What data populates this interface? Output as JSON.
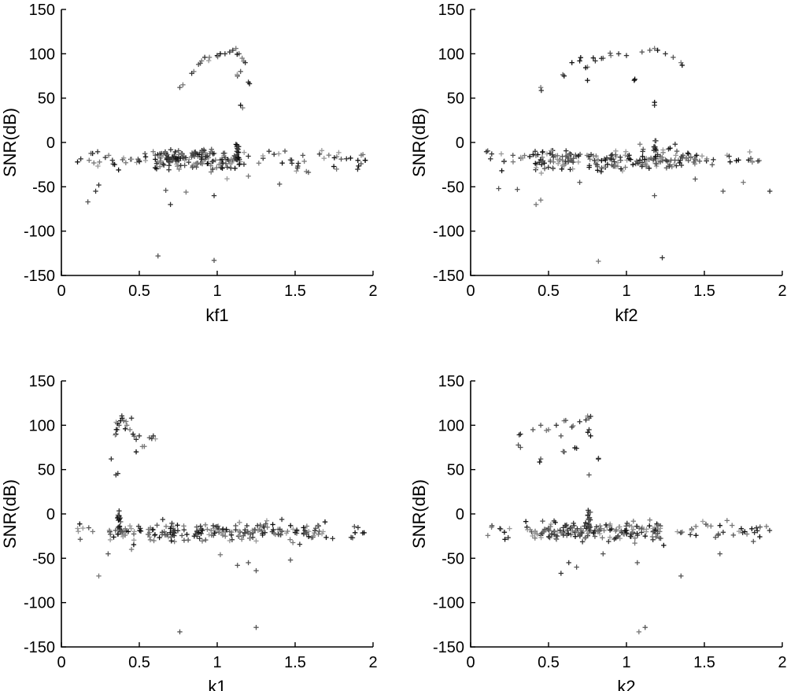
{
  "chart_data": [
    {
      "type": "scatter",
      "xlabel": "kf1",
      "ylabel": "SNR(dB)",
      "xlim": [
        0,
        2
      ],
      "ylim": [
        -150,
        150
      ],
      "xticks": [
        "0",
        "0.5",
        "1",
        "1.5",
        "2"
      ],
      "yticks": [
        "150",
        "100",
        "50",
        "0",
        "-50",
        "-100",
        "-150"
      ],
      "marker": "+",
      "point_color": "#222222",
      "outliers": [
        [
          0.17,
          -67
        ],
        [
          0.22,
          -55
        ],
        [
          0.24,
          -48
        ],
        [
          0.62,
          -128
        ],
        [
          0.67,
          -54
        ],
        [
          0.7,
          -70
        ],
        [
          0.98,
          -133
        ],
        [
          0.98,
          -60
        ],
        [
          1.2,
          -38
        ],
        [
          1.4,
          -47
        ],
        [
          0.8,
          -56
        ]
      ],
      "upper_arc": [
        [
          0.76,
          62
        ],
        [
          0.78,
          65
        ],
        [
          0.85,
          80
        ],
        [
          0.88,
          88
        ],
        [
          0.9,
          92
        ],
        [
          0.95,
          96
        ],
        [
          1.0,
          98
        ],
        [
          1.05,
          100
        ],
        [
          1.08,
          102
        ],
        [
          1.1,
          104
        ],
        [
          1.12,
          106
        ],
        [
          1.14,
          100
        ],
        [
          1.16,
          95
        ],
        [
          1.18,
          90
        ],
        [
          1.13,
          75
        ],
        [
          1.15,
          80
        ],
        [
          1.2,
          68
        ],
        [
          1.15,
          42
        ],
        [
          0.92,
          96
        ],
        [
          1.02,
          100
        ]
      ],
      "spike": {
        "x": 1.13,
        "y_range": [
          -20,
          5
        ]
      },
      "band": {
        "x_range": [
          0.1,
          1.95
        ],
        "center": -20,
        "spread": 10,
        "dense_range": [
          0.6,
          1.15
        ],
        "count": 230
      }
    },
    {
      "type": "scatter",
      "xlabel": "kf2",
      "ylabel": "SNR(dB)",
      "xlim": [
        0,
        2
      ],
      "ylim": [
        -150,
        150
      ],
      "xticks": [
        "0",
        "0.5",
        "1",
        "1.5",
        "2"
      ],
      "yticks": [
        "150",
        "100",
        "50",
        "0",
        "-50",
        "-100",
        "-150"
      ],
      "marker": "+",
      "point_color": "#222222",
      "outliers": [
        [
          0.18,
          -52
        ],
        [
          0.3,
          -53
        ],
        [
          0.42,
          -70
        ],
        [
          0.45,
          -65
        ],
        [
          0.82,
          -134
        ],
        [
          1.23,
          -130
        ],
        [
          1.18,
          -60
        ],
        [
          1.62,
          -55
        ],
        [
          1.75,
          -45
        ],
        [
          1.92,
          -55
        ],
        [
          0.7,
          -45
        ]
      ],
      "upper_arc": [
        [
          0.45,
          62
        ],
        [
          0.6,
          75
        ],
        [
          0.65,
          90
        ],
        [
          0.7,
          92
        ],
        [
          0.75,
          85
        ],
        [
          0.8,
          92
        ],
        [
          0.85,
          95
        ],
        [
          0.9,
          98
        ],
        [
          0.95,
          100
        ],
        [
          1.0,
          98
        ],
        [
          1.05,
          70
        ],
        [
          1.1,
          102
        ],
        [
          1.15,
          104
        ],
        [
          1.18,
          106
        ],
        [
          1.2,
          104
        ],
        [
          1.25,
          100
        ],
        [
          1.3,
          96
        ],
        [
          1.35,
          90
        ],
        [
          1.18,
          42
        ],
        [
          0.75,
          70
        ]
      ],
      "spike": {
        "x": 1.18,
        "y_range": [
          -20,
          5
        ]
      },
      "band": {
        "x_range": [
          0.1,
          1.95
        ],
        "center": -20,
        "spread": 10,
        "dense_range": [
          0.4,
          1.45
        ],
        "count": 230
      }
    },
    {
      "type": "scatter",
      "xlabel": "k1",
      "ylabel": "SNR(dB)",
      "xlim": [
        0,
        2
      ],
      "ylim": [
        -150,
        150
      ],
      "xticks": [
        "0",
        "0.5",
        "1",
        "1.5",
        "2"
      ],
      "yticks": [
        "150",
        "100",
        "50",
        "0",
        "-50",
        "-100",
        "-150"
      ],
      "marker": "+",
      "point_color": "#222222",
      "outliers": [
        [
          0.24,
          -70
        ],
        [
          0.3,
          -45
        ],
        [
          0.76,
          -133
        ],
        [
          1.25,
          -128
        ],
        [
          1.13,
          -58
        ],
        [
          1.2,
          -55
        ],
        [
          1.25,
          -64
        ],
        [
          1.47,
          -52
        ],
        [
          0.45,
          -40
        ],
        [
          1.02,
          -46
        ]
      ],
      "upper_arc": [
        [
          0.32,
          62
        ],
        [
          0.35,
          44
        ],
        [
          0.35,
          90
        ],
        [
          0.36,
          95
        ],
        [
          0.37,
          100
        ],
        [
          0.38,
          105
        ],
        [
          0.39,
          108
        ],
        [
          0.4,
          105
        ],
        [
          0.42,
          100
        ],
        [
          0.44,
          95
        ],
        [
          0.46,
          90
        ],
        [
          0.48,
          84
        ],
        [
          0.5,
          88
        ],
        [
          0.52,
          76
        ],
        [
          0.58,
          85
        ],
        [
          0.59,
          88
        ],
        [
          0.45,
          108
        ],
        [
          0.36,
          102
        ],
        [
          0.41,
          96
        ],
        [
          0.48,
          70
        ]
      ],
      "spike": {
        "x": 0.37,
        "y_range": [
          -20,
          5
        ]
      },
      "band": {
        "x_range": [
          0.1,
          1.95
        ],
        "center": -20,
        "spread": 9,
        "dense_range": [
          0.3,
          1.7
        ],
        "count": 230
      }
    },
    {
      "type": "scatter",
      "xlabel": "k2",
      "ylabel": "SNR(dB)",
      "xlim": [
        0,
        2
      ],
      "ylim": [
        -150,
        150
      ],
      "xticks": [
        "0",
        "0.5",
        "1",
        "1.5",
        "2"
      ],
      "yticks": [
        "150",
        "100",
        "50",
        "0",
        "-50",
        "-100",
        "-150"
      ],
      "marker": "+",
      "point_color": "#222222",
      "outliers": [
        [
          0.58,
          -67
        ],
        [
          0.63,
          -55
        ],
        [
          0.68,
          -60
        ],
        [
          1.08,
          -133
        ],
        [
          1.12,
          -128
        ],
        [
          1.35,
          -70
        ],
        [
          1.07,
          -55
        ],
        [
          1.6,
          -45
        ],
        [
          0.85,
          -45
        ]
      ],
      "upper_arc": [
        [
          0.32,
          75
        ],
        [
          0.32,
          90
        ],
        [
          0.4,
          95
        ],
        [
          0.45,
          100
        ],
        [
          0.5,
          95
        ],
        [
          0.55,
          100
        ],
        [
          0.6,
          105
        ],
        [
          0.65,
          98
        ],
        [
          0.7,
          104
        ],
        [
          0.74,
          106
        ],
        [
          0.76,
          108
        ],
        [
          0.77,
          110
        ],
        [
          0.76,
          95
        ],
        [
          0.77,
          88
        ],
        [
          0.45,
          62
        ],
        [
          0.6,
          70
        ],
        [
          0.68,
          74
        ],
        [
          0.82,
          62
        ],
        [
          0.76,
          44
        ],
        [
          0.58,
          88
        ]
      ],
      "spike": {
        "x": 0.76,
        "y_range": [
          -20,
          5
        ]
      },
      "band": {
        "x_range": [
          0.1,
          1.95
        ],
        "center": -20,
        "spread": 9,
        "dense_range": [
          0.35,
          1.25
        ],
        "count": 230
      }
    }
  ]
}
